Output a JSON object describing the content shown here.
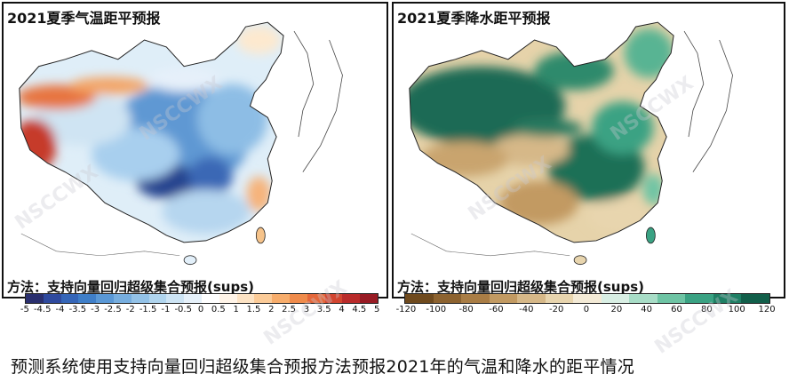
{
  "panels": [
    {
      "title": "2021夏季气温距平预报",
      "method": "方法：支持向量回归超级集合预报(sups)",
      "colorbar_ticks": [
        "-5",
        "-4.5",
        "-4",
        "-3.5",
        "-3",
        "-2.5",
        "-2",
        "-1.5",
        "-1",
        "-0.5",
        "0",
        "0.5",
        "1",
        "1.5",
        "2",
        "2.5",
        "3",
        "3.5",
        "4",
        "4.5",
        "5"
      ],
      "colorbar_colors": [
        "#2a2f6e",
        "#2f4a9e",
        "#3566b8",
        "#3f7fc9",
        "#5a98d6",
        "#77aedf",
        "#93c2e7",
        "#b0d5ee",
        "#cde4f4",
        "#e6f1fa",
        "#ffffff",
        "#fff4e8",
        "#fde3c4",
        "#fbcb98",
        "#f7ad6c",
        "#ef8b4b",
        "#e4673a",
        "#d24530",
        "#b92b2a",
        "#981b24"
      ]
    },
    {
      "title": "2021夏季降水距平预报",
      "method": "方法：支持向量回归超级集合预报(sups)",
      "colorbar_ticks": [
        "-120",
        "-100",
        "-80",
        "-60",
        "-40",
        "-20",
        "0",
        "20",
        "40",
        "60",
        "80",
        "100",
        "120"
      ],
      "colorbar_colors": [
        "#6f4a1e",
        "#8d6330",
        "#a97d45",
        "#c29a62",
        "#d6b888",
        "#e8d5ae",
        "#f3ead6",
        "#d9efe4",
        "#a8ddc7",
        "#6ec4a4",
        "#3aa283",
        "#1f7f64",
        "#125f4a"
      ]
    }
  ],
  "caption": "预测系统使用支持向量回归超级集合预报方法预报2021年的气温和降水的距平情况",
  "watermark": "NSCCWX"
}
